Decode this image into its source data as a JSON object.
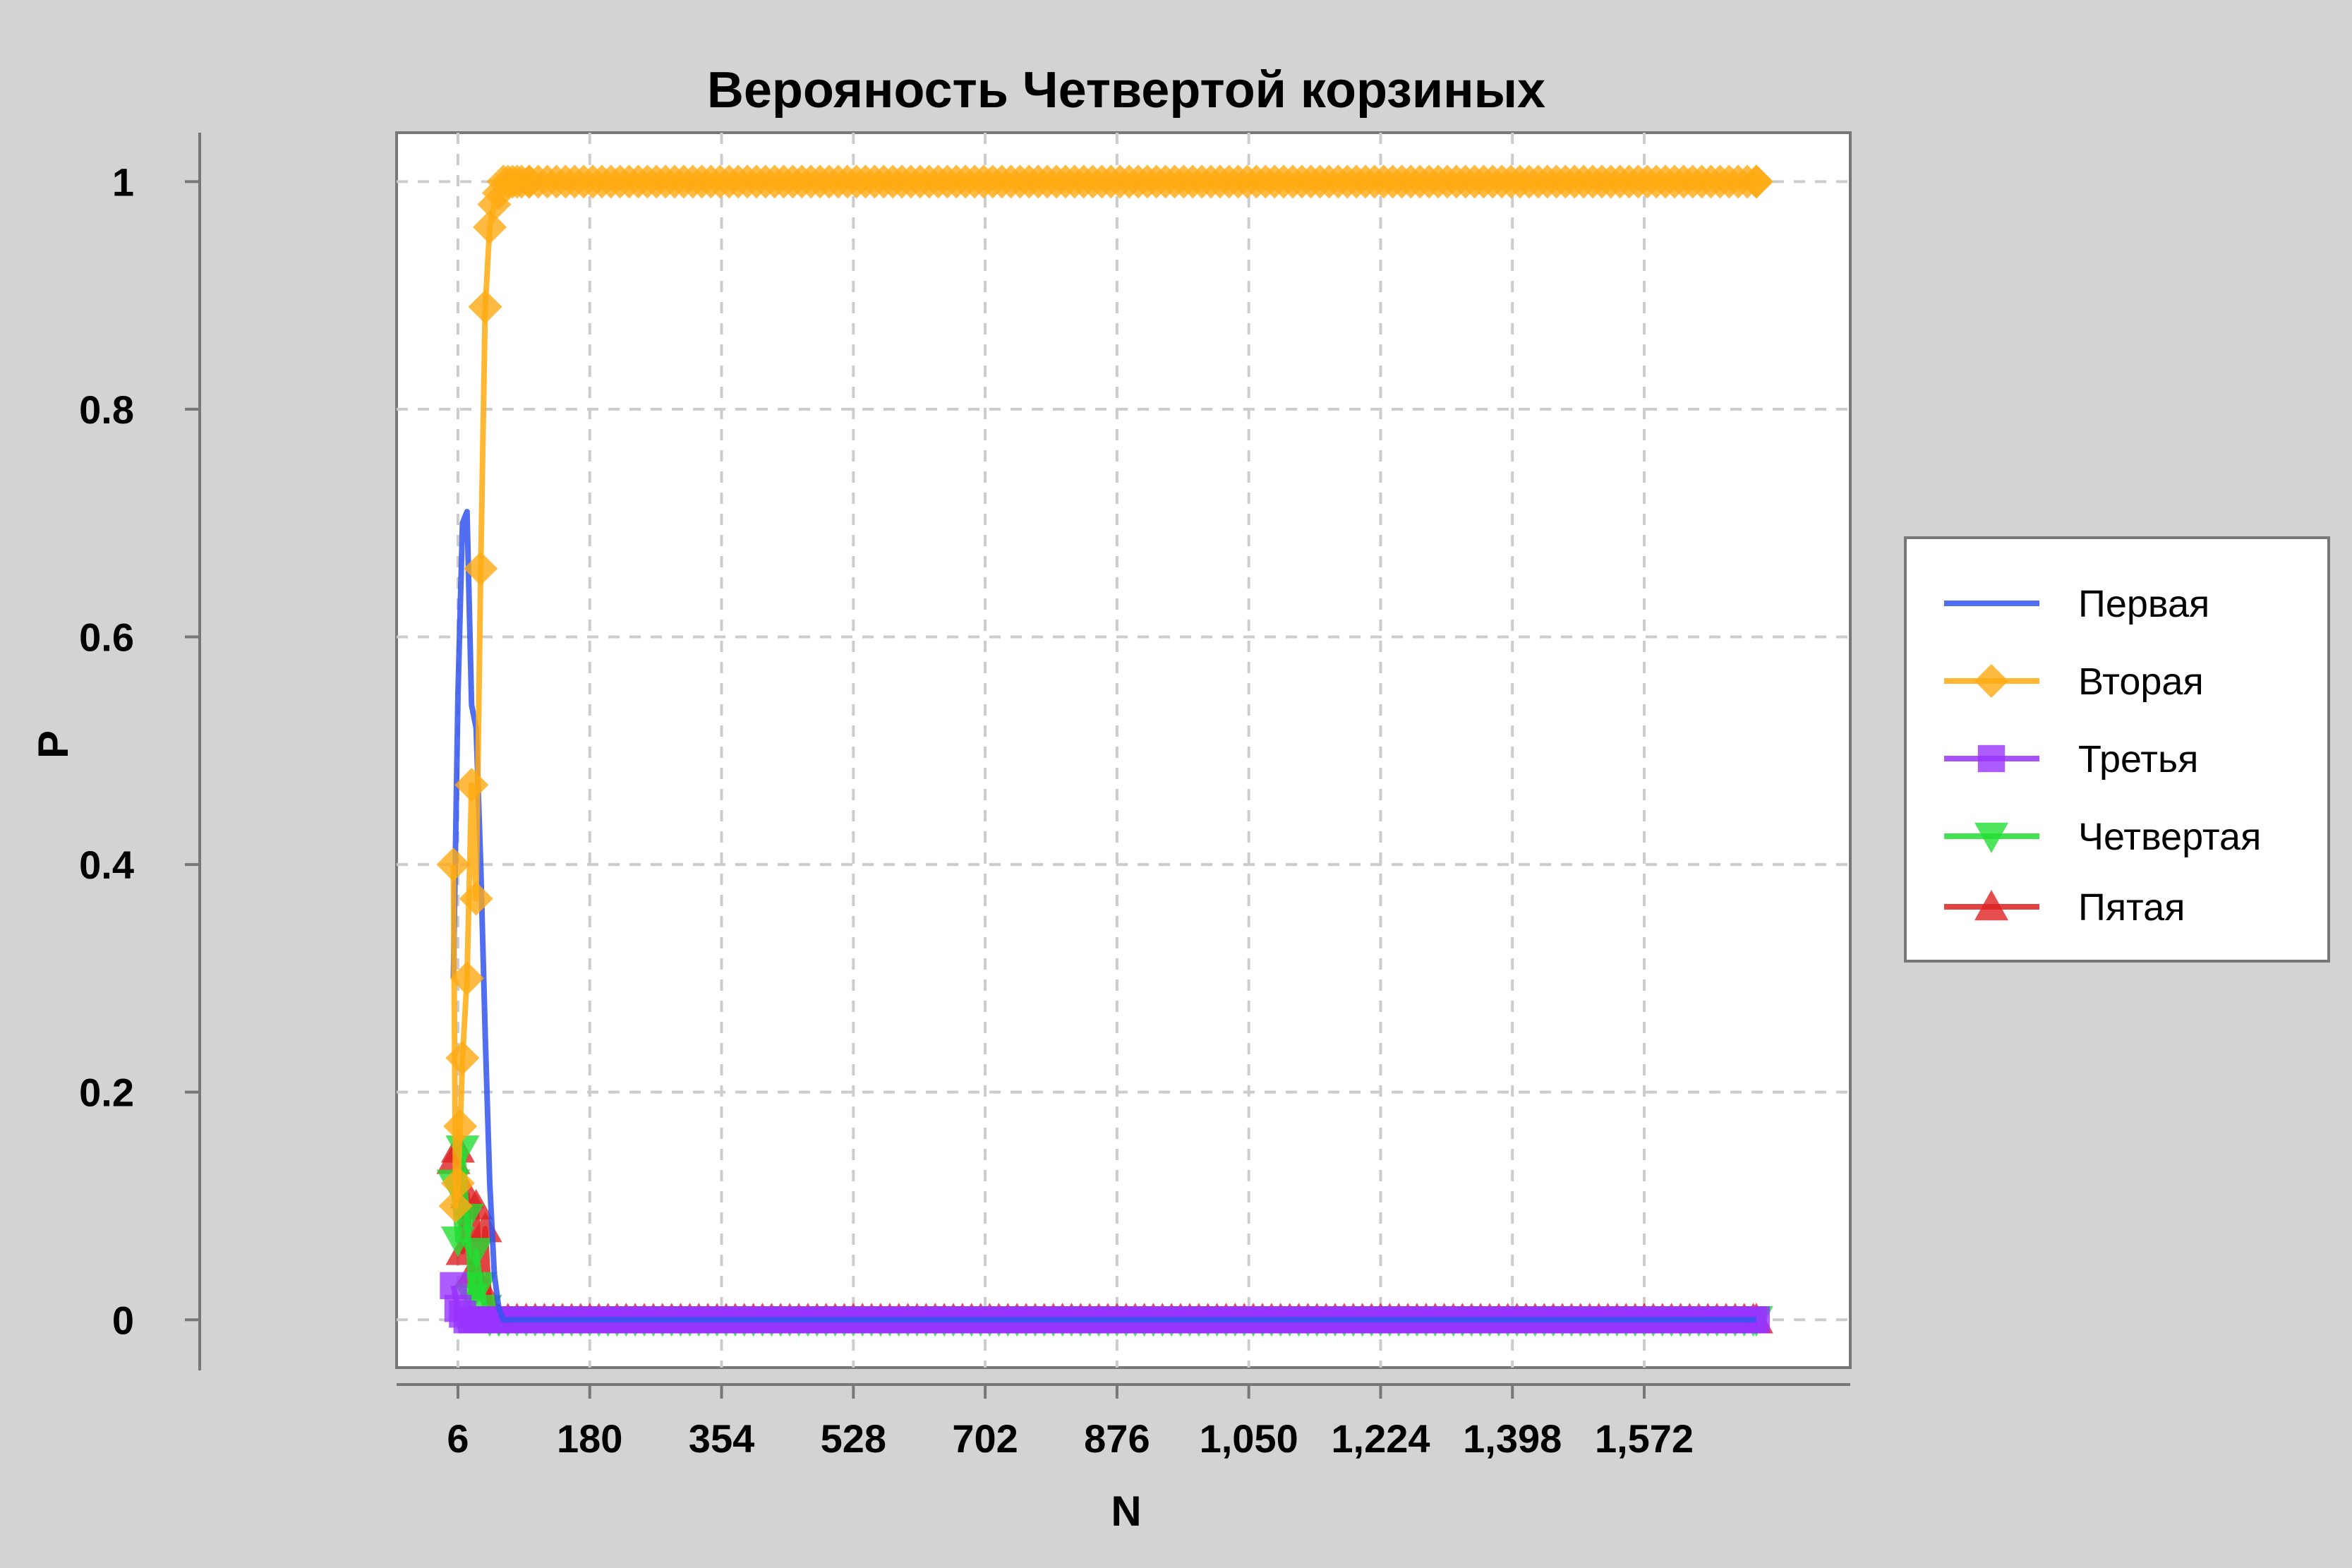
{
  "chart_data": {
    "type": "line",
    "title": "Верояность Четвертой корзиных",
    "xlabel": "N",
    "ylabel": "P",
    "xlim": [
      -75,
      1844
    ],
    "ylim": [
      -0.042,
      1.043
    ],
    "x_ticks": [
      6,
      180,
      354,
      528,
      702,
      876,
      1050,
      1224,
      1398,
      1572
    ],
    "x_tick_labels": [
      "6",
      "180",
      "354",
      "528",
      "702",
      "876",
      "1,050",
      "1,224",
      "1,398",
      "1,572"
    ],
    "y_ticks": [
      0,
      0.2,
      0.4,
      0.6,
      0.8,
      1
    ],
    "y_tick_labels": [
      "0",
      "0.2",
      "0.4",
      "0.6",
      "0.8",
      "1"
    ],
    "grid": true,
    "legend_position": "right",
    "series": [
      {
        "name": "Первая",
        "color": "#3355ee",
        "marker": "none",
        "x": [
          0,
          6,
          12,
          18,
          24,
          30,
          36,
          42,
          48,
          54,
          60,
          66,
          72,
          80,
          90,
          100,
          1720
        ],
        "y": [
          0.3,
          0.55,
          0.7,
          0.71,
          0.54,
          0.52,
          0.4,
          0.25,
          0.12,
          0.04,
          0.01,
          0,
          0,
          0,
          0,
          0,
          0
        ]
      },
      {
        "name": "Вторая",
        "color": "#ffaa11",
        "marker": "diamond",
        "x": [
          0,
          3,
          6,
          9,
          12,
          18,
          24,
          30,
          36,
          42,
          48,
          54,
          60,
          66,
          72,
          78,
          84,
          90,
          100,
          1720
        ],
        "y": [
          0.4,
          0.1,
          0.12,
          0.17,
          0.23,
          0.3,
          0.47,
          0.37,
          0.66,
          0.89,
          0.96,
          0.98,
          0.99,
          1,
          1,
          1,
          1,
          1,
          1,
          1
        ]
      },
      {
        "name": "Третья",
        "color": "#9933ff",
        "marker": "square",
        "x": [
          0,
          6,
          12,
          18,
          24,
          30,
          40,
          60,
          1720
        ],
        "y": [
          0.03,
          0.01,
          0.005,
          0,
          0,
          0,
          0,
          0,
          0
        ]
      },
      {
        "name": "Четвертая",
        "color": "#22dd33",
        "marker": "triangle-down",
        "x": [
          0,
          6,
          12,
          18,
          24,
          30,
          36,
          42,
          48,
          60,
          1720
        ],
        "y": [
          0.12,
          0.07,
          0.15,
          0.09,
          0.02,
          0.06,
          0.03,
          0.01,
          0,
          0,
          0
        ]
      },
      {
        "name": "Пятая",
        "color": "#dd2222",
        "marker": "triangle-up",
        "x": [
          0,
          6,
          12,
          18,
          24,
          30,
          36,
          42,
          48,
          54,
          60,
          1720
        ],
        "y": [
          0.14,
          0.15,
          0.06,
          0.11,
          0.04,
          0.1,
          0.03,
          0.08,
          0.01,
          0.005,
          0,
          0
        ]
      }
    ]
  }
}
